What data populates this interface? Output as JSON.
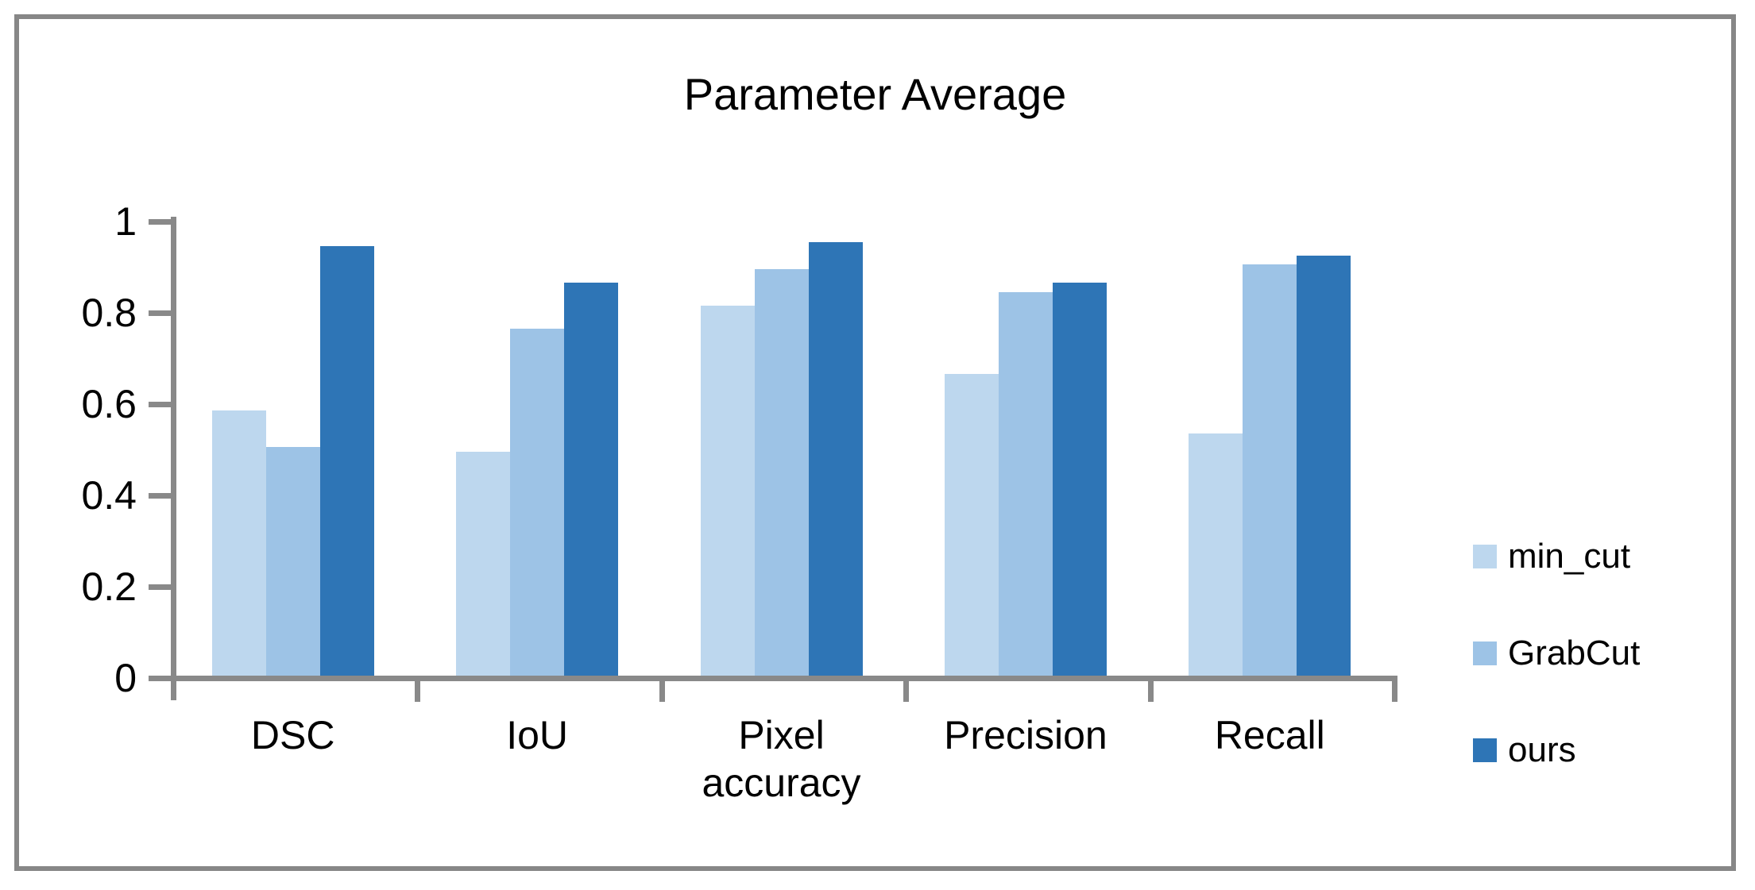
{
  "chart_data": {
    "type": "bar",
    "title": "Parameter Average",
    "categories": [
      "DSC",
      "IoU",
      "Pixel accuracy",
      "Precision",
      "Recall"
    ],
    "series": [
      {
        "name": "min_cut",
        "color": "#BDD7EE",
        "values": [
          0.58,
          0.49,
          0.81,
          0.66,
          0.53
        ]
      },
      {
        "name": "GrabCut",
        "color": "#9DC3E6",
        "values": [
          0.5,
          0.76,
          0.89,
          0.84,
          0.9
        ]
      },
      {
        "name": "ours",
        "color": "#2E75B6",
        "values": [
          0.94,
          0.86,
          0.95,
          0.86,
          0.92
        ]
      }
    ],
    "xlabel": "",
    "ylabel": "",
    "ylim": [
      0,
      1
    ],
    "yticks": [
      0,
      0.2,
      0.4,
      0.6,
      0.8,
      1
    ],
    "ytick_labels": [
      "0",
      "0.2",
      "0.4",
      "0.6",
      "0.8",
      "1"
    ],
    "grid": false,
    "legend_position": "right",
    "axis_color": "#898989",
    "frame_color": "#878787"
  }
}
